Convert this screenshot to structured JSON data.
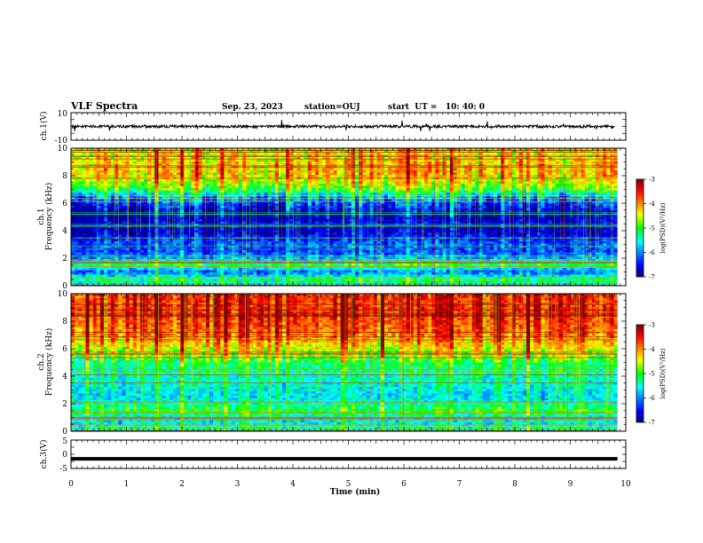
{
  "header": {
    "title": "VLF Spectra",
    "date": "Sep. 23, 2023",
    "station": "station=OUJ",
    "start_ut": "start  UT =   10: 40: 0"
  },
  "chart_data": [
    {
      "type": "line",
      "panel": "ch1-waveform",
      "ylabel": "ch.1(V)",
      "ylim": [
        -10,
        10
      ],
      "ytick_labels": [
        "10",
        "-10"
      ],
      "xlim": [
        0,
        10
      ],
      "trace_level_v": 0,
      "trace_amplitude_v": 2,
      "trace_color": "#000000"
    },
    {
      "type": "heatmap",
      "panel": "ch1-spectrogram",
      "ylabel": "ch.1\nFrequency (kHz)",
      "ylim": [
        0,
        10
      ],
      "ytick_labels": [
        "0",
        "2",
        "4",
        "6",
        "8",
        "10"
      ],
      "xlim": [
        0,
        9.85
      ],
      "colorbar": {
        "label": "log(PSD)(V²/Hz)",
        "range": [
          -7,
          -3
        ],
        "tick_labels": [
          "-3",
          "-4",
          "-5",
          "-6",
          "-7"
        ]
      },
      "frequency_profile_khz": [
        [
          0,
          -5.6
        ],
        [
          0.5,
          -5.2
        ],
        [
          1.0,
          -6.2
        ],
        [
          1.5,
          -5.0
        ],
        [
          2.0,
          -5.9
        ],
        [
          2.5,
          -6.3
        ],
        [
          3.0,
          -6.2
        ],
        [
          3.5,
          -6.5
        ],
        [
          4.0,
          -6.8
        ],
        [
          4.5,
          -6.6
        ],
        [
          5.0,
          -6.9
        ],
        [
          5.5,
          -6.7
        ],
        [
          6.0,
          -6.4
        ],
        [
          6.5,
          -5.9
        ],
        [
          7.0,
          -5.0
        ],
        [
          7.5,
          -4.6
        ],
        [
          8.0,
          -4.3
        ],
        [
          8.5,
          -4.2
        ],
        [
          9.0,
          -4.3
        ],
        [
          9.5,
          -4.4
        ],
        [
          10,
          -4.5
        ]
      ]
    },
    {
      "type": "heatmap",
      "panel": "ch2-spectrogram",
      "ylabel": "ch.2\nFrequency (kHz)",
      "ylim": [
        0,
        10
      ],
      "ytick_labels": [
        "0",
        "2",
        "4",
        "6",
        "8",
        "10"
      ],
      "xlim": [
        0,
        9.85
      ],
      "colorbar": {
        "label": "log(PSD)(V²/Hz)",
        "range": [
          -7,
          -3
        ],
        "tick_labels": [
          "-3",
          "-4",
          "-5",
          "-6",
          "-7"
        ]
      },
      "frequency_profile_khz": [
        [
          0,
          -5.2
        ],
        [
          0.5,
          -5.6
        ],
        [
          1.0,
          -5.5
        ],
        [
          1.5,
          -5.0
        ],
        [
          2.0,
          -5.4
        ],
        [
          2.5,
          -5.7
        ],
        [
          3.0,
          -5.6
        ],
        [
          3.5,
          -5.5
        ],
        [
          4.0,
          -5.4
        ],
        [
          4.5,
          -5.3
        ],
        [
          5.0,
          -5.2
        ],
        [
          5.5,
          -4.8
        ],
        [
          6.0,
          -4.5
        ],
        [
          6.5,
          -4.2
        ],
        [
          7.0,
          -3.9
        ],
        [
          7.5,
          -3.8
        ],
        [
          8.0,
          -3.7
        ],
        [
          8.5,
          -3.6
        ],
        [
          9.0,
          -3.6
        ],
        [
          9.5,
          -3.6
        ],
        [
          10,
          -3.6
        ]
      ]
    },
    {
      "type": "line",
      "panel": "ch3-waveform",
      "ylabel": "ch.3(V)",
      "ylim": [
        -5,
        5
      ],
      "ytick_labels": [
        "5",
        "0",
        "-5"
      ],
      "xlim": [
        0,
        10
      ],
      "trace_level_v": -1.6,
      "trace_color": "#000000"
    }
  ],
  "x_axis": {
    "label": "Time (min)",
    "tick_labels": [
      "0",
      "1",
      "2",
      "3",
      "4",
      "5",
      "6",
      "7",
      "8",
      "9",
      "10"
    ],
    "range": [
      0,
      10
    ]
  },
  "colors": {
    "colormap": [
      "#000080",
      "#0000ff",
      "#00ffff",
      "#00ff00",
      "#ffff00",
      "#ff0000",
      "#800000"
    ]
  }
}
